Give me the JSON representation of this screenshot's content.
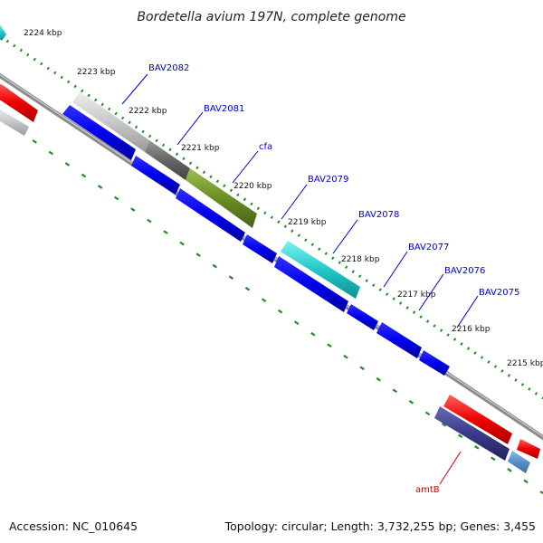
{
  "title": "Bordetella avium 197N, complete genome",
  "footer": {
    "accession": "Accession: NC_010645",
    "topology": "Topology: circular; Length: 3,732,255 bp; Genes: 3,455"
  },
  "ticks": [
    "2224 kbp",
    "2223 kbp",
    "2222 kbp",
    "2221 kbp",
    "2220 kbp",
    "2219 kbp",
    "2218 kbp",
    "2217 kbp",
    "2216 kbp",
    "2215 kbp"
  ],
  "genes": [
    {
      "name": "BAV2082",
      "strand": "forward",
      "color": "#c8c8c8"
    },
    {
      "name": "BAV2081",
      "strand": "forward",
      "color": "#666666"
    },
    {
      "name": "cfa",
      "strand": "forward",
      "color": "#6b8e23"
    },
    {
      "name": "BAV2079",
      "strand": "forward",
      "color": "#20c8c8"
    },
    {
      "name": "BAV2078",
      "strand": "reverse",
      "color": "#0000ee"
    },
    {
      "name": "BAV2077",
      "strand": "reverse",
      "color": "#0000ee"
    },
    {
      "name": "BAV2076",
      "strand": "reverse",
      "color": "#0000ee"
    },
    {
      "name": "BAV2075",
      "strand": "reverse",
      "color": "#0000ee"
    },
    {
      "name": "amtB",
      "strand": "reverse",
      "color": "#3a3a8c"
    }
  ],
  "colors": {
    "label": "#0000cc",
    "amtB_label": "#cc0000",
    "rrna": "#ee0000",
    "trna": "#20c8c8",
    "other": "#5a8ec8",
    "backbone": "#808080",
    "tick": "#228b22"
  }
}
